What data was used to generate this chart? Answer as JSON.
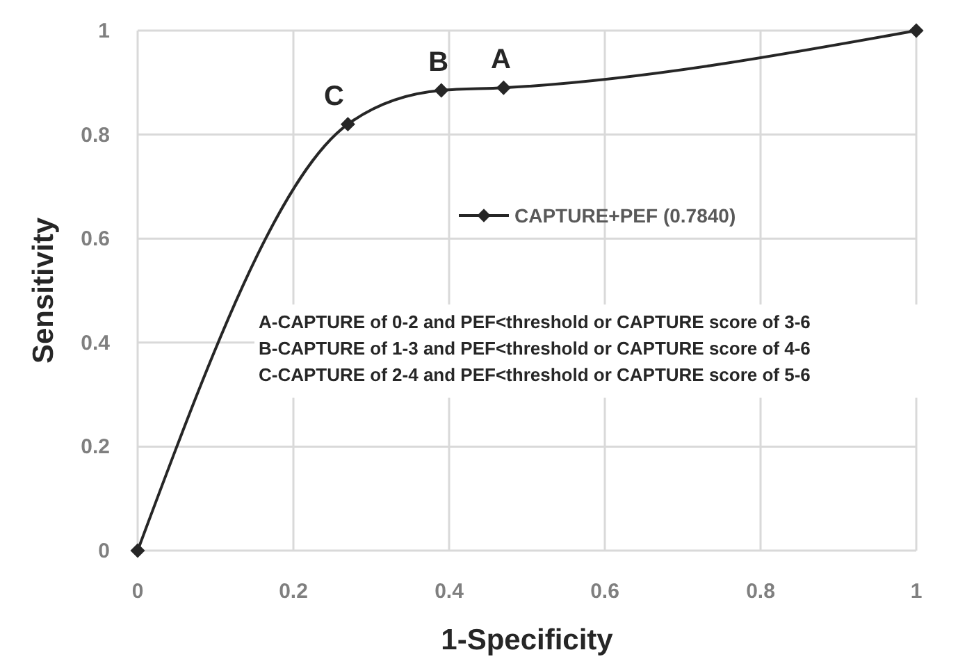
{
  "chart_data": {
    "type": "line",
    "xlabel": "1-Specificity",
    "ylabel": "Sensitivity",
    "x": [
      0,
      0.27,
      0.39,
      0.47,
      1
    ],
    "series": [
      {
        "name": "CAPTURE+PEF (0.7840)",
        "color": "#262626",
        "values": [
          0,
          0.82,
          0.885,
          0.89,
          1
        ]
      }
    ],
    "xlim": [
      0,
      1
    ],
    "ylim": [
      0,
      1
    ],
    "xticks": [
      0,
      0.2,
      0.4,
      0.6,
      0.8,
      1
    ],
    "yticks": [
      0,
      0.2,
      0.4,
      0.6,
      0.8,
      1
    ],
    "grid": true,
    "legend": "center",
    "marker": "diamond",
    "line_style": "solid",
    "annotations": [
      {
        "text": "C",
        "x": 0.27,
        "y": 0.82
      },
      {
        "text": "B",
        "x": 0.39,
        "y": 0.885
      },
      {
        "text": "A",
        "x": 0.47,
        "y": 0.89
      },
      "A-CAPTURE of 0-2 and PEF<threshold or CAPTURE score of 3-6",
      "B-CAPTURE of 1-3 and PEF<threshold or CAPTURE score of 4-6",
      "C-CAPTURE of 2-4 and PEF<threshold or CAPTURE score of 5-6"
    ]
  }
}
